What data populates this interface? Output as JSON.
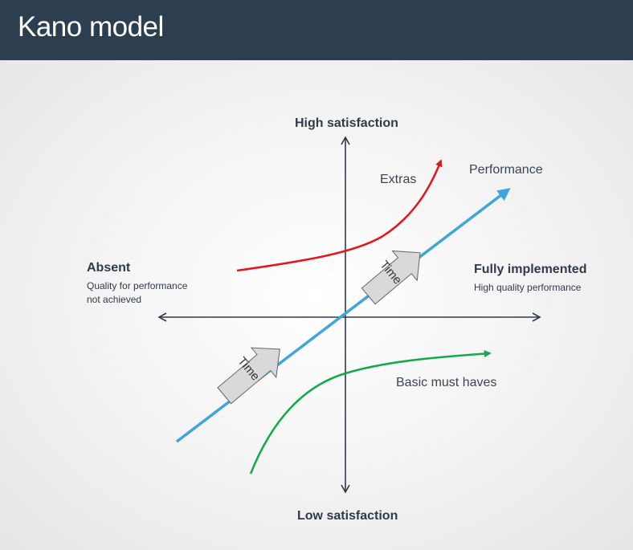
{
  "header": {
    "title": "Kano model"
  },
  "axes": {
    "top": "High satisfaction",
    "bottom": "Low satisfaction",
    "left": {
      "title": "Absent",
      "subtitle_line1": "Quality for performance",
      "subtitle_line2": "not achieved"
    },
    "right": {
      "title": "Fully implemented",
      "subtitle": "High quality performance"
    }
  },
  "curves": {
    "extras": {
      "label": "Extras",
      "color": "#e5161b"
    },
    "performance": {
      "label": "Performance",
      "color": "#3ea6dd"
    },
    "basic": {
      "label": "Basic must haves",
      "color": "#13a94a"
    }
  },
  "time_arrows": [
    {
      "label": "Time"
    },
    {
      "label": "Time"
    }
  ],
  "colors": {
    "axis": "#2f3b4a",
    "header_bg": "#2d3e50",
    "arrow_fill": "#d9d9d9",
    "arrow_stroke": "#666666"
  }
}
